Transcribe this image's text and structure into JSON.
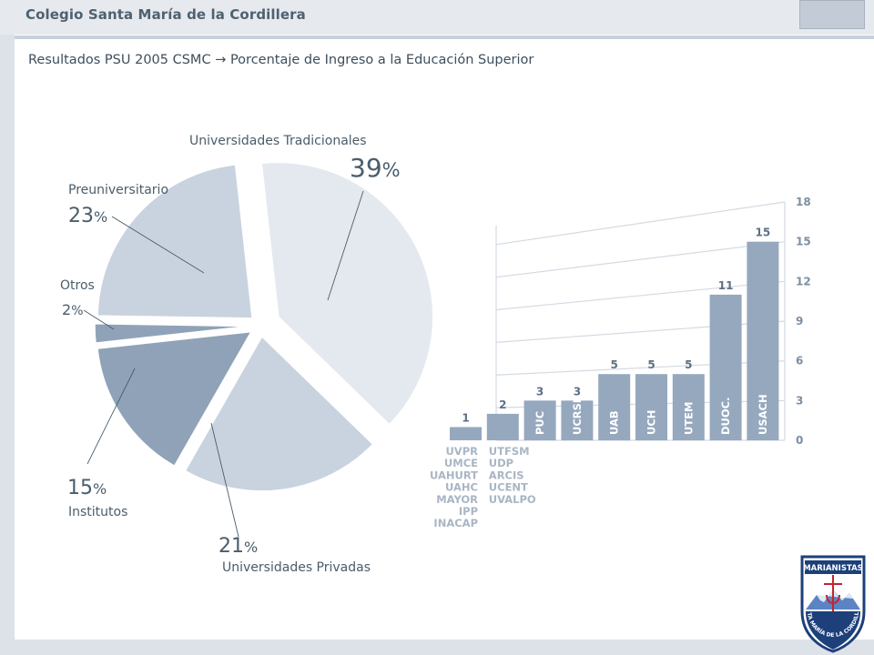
{
  "header": {
    "title": "Colegio Santa María de la Cordillera"
  },
  "subtitle": {
    "left": "Resultados PSU 2005 CSMC",
    "arrow": "→",
    "right": "Porcentaje de Ingreso a la Educación Superior"
  },
  "logo": {
    "text_top": "MARIANISTAS",
    "text_arc": "SANTA MARÍA DE LA CORDILLERA"
  },
  "colors": {
    "pie_light": "#e4e9ef",
    "pie_mid": "#c9d3df",
    "pie_dark": "#8fa2b7",
    "bar": "#95a8be",
    "text": "#4a5d6b"
  },
  "chart_data": [
    {
      "type": "pie",
      "slices": [
        {
          "label": "Universidades Tradicionales",
          "value": 39,
          "display": "39",
          "unit": "%"
        },
        {
          "label": "Universidades Privadas",
          "value": 21,
          "display": "21",
          "unit": "%"
        },
        {
          "label": "Institutos",
          "value": 15,
          "display": "15",
          "unit": "%"
        },
        {
          "label": "Otros",
          "value": 2,
          "display": "2",
          "unit": "%"
        },
        {
          "label": "Preuniversitario",
          "value": 23,
          "display": "23",
          "unit": "%"
        }
      ]
    },
    {
      "type": "bar",
      "values": [
        1,
        2,
        3,
        3,
        5,
        5,
        5,
        11,
        15
      ],
      "bar_labels": [
        "",
        "",
        "PUC",
        "UCRSH",
        "UAB",
        "UCH",
        "UTEM",
        "DUOC.",
        "USACH"
      ],
      "below_labels": [
        [
          "UVPR",
          "UMCE",
          "UAHURT",
          "UAHC",
          "MAYOR",
          "IPP",
          "INACAP"
        ],
        [
          "UTFSM",
          "UDP",
          "ARCIS",
          "UCENT",
          "UVALPO"
        ]
      ],
      "yticks": [
        0,
        3,
        6,
        9,
        12,
        15,
        18
      ],
      "ylim": [
        0,
        18
      ]
    }
  ]
}
